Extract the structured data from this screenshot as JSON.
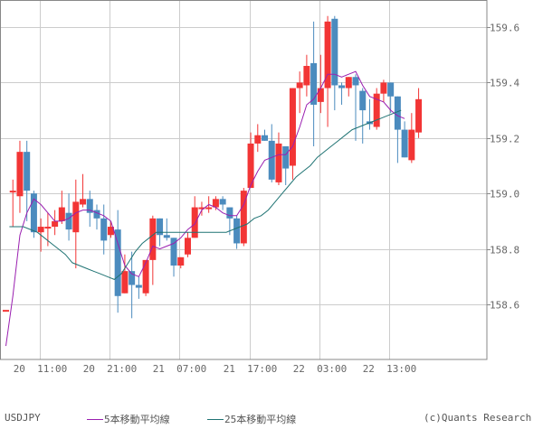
{
  "chart_data": {
    "type": "candlestick",
    "symbol": "USDJPY",
    "ylim": [
      158.44,
      159.72
    ],
    "y_ticks": [
      159.6,
      159.4,
      159.2,
      159.0,
      158.8,
      158.6
    ],
    "y_tick_labels": [
      "159.6",
      "159.4",
      "159.2",
      "159.0",
      "158.8",
      "158.6"
    ],
    "x_ticks": [
      {
        "index": 5,
        "label": "20 11:00"
      },
      {
        "index": 15,
        "label": "20 21:00"
      },
      {
        "index": 25,
        "label": "21 07:00"
      },
      {
        "index": 35,
        "label": "21 17:00"
      },
      {
        "index": 45,
        "label": "22 03:00"
      },
      {
        "index": 55,
        "label": "22 13:00"
      }
    ],
    "grid": true,
    "legend_position": "bottom",
    "candles": [
      {
        "o": 158.58,
        "h": 158.58,
        "l": 158.58,
        "c": 158.58
      },
      {
        "o": 159.01,
        "h": 159.05,
        "l": 158.88,
        "c": 159.01
      },
      {
        "o": 158.99,
        "h": 159.19,
        "l": 158.93,
        "c": 159.15
      },
      {
        "o": 159.15,
        "h": 159.19,
        "l": 158.9,
        "c": 159.01
      },
      {
        "o": 159.0,
        "h": 159.01,
        "l": 158.84,
        "c": 158.86
      },
      {
        "o": 158.86,
        "h": 158.91,
        "l": 158.79,
        "c": 158.88
      },
      {
        "o": 158.88,
        "h": 158.93,
        "l": 158.81,
        "c": 158.88
      },
      {
        "o": 158.88,
        "h": 158.94,
        "l": 158.85,
        "c": 158.9
      },
      {
        "o": 158.9,
        "h": 159.01,
        "l": 158.89,
        "c": 158.95
      },
      {
        "o": 158.93,
        "h": 159.0,
        "l": 158.83,
        "c": 158.87
      },
      {
        "o": 158.86,
        "h": 159.05,
        "l": 158.73,
        "c": 158.97
      },
      {
        "o": 158.96,
        "h": 159.07,
        "l": 158.95,
        "c": 158.98
      },
      {
        "o": 158.98,
        "h": 159.01,
        "l": 158.88,
        "c": 158.93
      },
      {
        "o": 158.94,
        "h": 158.96,
        "l": 158.87,
        "c": 158.91
      },
      {
        "o": 158.91,
        "h": 158.96,
        "l": 158.78,
        "c": 158.83
      },
      {
        "o": 158.85,
        "h": 158.9,
        "l": 158.84,
        "c": 158.88
      },
      {
        "o": 158.87,
        "h": 158.94,
        "l": 158.57,
        "c": 158.63
      },
      {
        "o": 158.64,
        "h": 158.78,
        "l": 158.64,
        "c": 158.72
      },
      {
        "o": 158.72,
        "h": 158.79,
        "l": 158.55,
        "c": 158.67
      },
      {
        "o": 158.67,
        "h": 158.7,
        "l": 158.62,
        "c": 158.66
      },
      {
        "o": 158.64,
        "h": 158.76,
        "l": 158.63,
        "c": 158.76
      },
      {
        "o": 158.76,
        "h": 158.92,
        "l": 158.67,
        "c": 158.91
      },
      {
        "o": 158.91,
        "h": 158.91,
        "l": 158.81,
        "c": 158.85
      },
      {
        "o": 158.85,
        "h": 158.91,
        "l": 158.83,
        "c": 158.84
      },
      {
        "o": 158.84,
        "h": 158.84,
        "l": 158.7,
        "c": 158.74
      },
      {
        "o": 158.74,
        "h": 158.77,
        "l": 158.73,
        "c": 158.77
      },
      {
        "o": 158.78,
        "h": 158.86,
        "l": 158.77,
        "c": 158.84
      },
      {
        "o": 158.84,
        "h": 158.99,
        "l": 158.84,
        "c": 158.95
      },
      {
        "o": 158.95,
        "h": 158.97,
        "l": 158.92,
        "c": 158.95
      },
      {
        "o": 158.95,
        "h": 158.99,
        "l": 158.93,
        "c": 158.95
      },
      {
        "o": 158.95,
        "h": 158.99,
        "l": 158.94,
        "c": 158.98
      },
      {
        "o": 158.98,
        "h": 158.99,
        "l": 158.94,
        "c": 158.96
      },
      {
        "o": 158.95,
        "h": 158.95,
        "l": 158.85,
        "c": 158.91
      },
      {
        "o": 158.91,
        "h": 158.92,
        "l": 158.8,
        "c": 158.82
      },
      {
        "o": 158.82,
        "h": 159.02,
        "l": 158.81,
        "c": 159.01
      },
      {
        "o": 159.02,
        "h": 159.22,
        "l": 159.02,
        "c": 159.18
      },
      {
        "o": 159.18,
        "h": 159.25,
        "l": 159.15,
        "c": 159.21
      },
      {
        "o": 159.21,
        "h": 159.23,
        "l": 159.19,
        "c": 159.19
      },
      {
        "o": 159.19,
        "h": 159.25,
        "l": 159.04,
        "c": 159.05
      },
      {
        "o": 159.04,
        "h": 159.22,
        "l": 159.03,
        "c": 159.18
      },
      {
        "o": 159.17,
        "h": 159.17,
        "l": 159.03,
        "c": 159.09
      },
      {
        "o": 159.1,
        "h": 159.38,
        "l": 159.05,
        "c": 159.38
      },
      {
        "o": 159.38,
        "h": 159.44,
        "l": 159.29,
        "c": 159.4
      },
      {
        "o": 159.39,
        "h": 159.5,
        "l": 159.35,
        "c": 159.46
      },
      {
        "o": 159.47,
        "h": 159.62,
        "l": 159.17,
        "c": 159.32
      },
      {
        "o": 159.33,
        "h": 159.5,
        "l": 159.29,
        "c": 159.38
      },
      {
        "o": 159.38,
        "h": 159.64,
        "l": 159.24,
        "c": 159.62
      },
      {
        "o": 159.63,
        "h": 159.64,
        "l": 159.3,
        "c": 159.39
      },
      {
        "o": 159.39,
        "h": 159.4,
        "l": 159.32,
        "c": 159.38
      },
      {
        "o": 159.38,
        "h": 159.42,
        "l": 159.35,
        "c": 159.42
      },
      {
        "o": 159.42,
        "h": 159.43,
        "l": 159.19,
        "c": 159.39
      },
      {
        "o": 159.37,
        "h": 159.38,
        "l": 159.18,
        "c": 159.3
      },
      {
        "o": 159.26,
        "h": 159.34,
        "l": 159.23,
        "c": 159.25
      },
      {
        "o": 159.24,
        "h": 159.38,
        "l": 159.23,
        "c": 159.36
      },
      {
        "o": 159.36,
        "h": 159.41,
        "l": 159.33,
        "c": 159.4
      },
      {
        "o": 159.4,
        "h": 159.4,
        "l": 159.29,
        "c": 159.35
      },
      {
        "o": 159.35,
        "h": 159.35,
        "l": 159.11,
        "c": 159.23
      },
      {
        "o": 159.23,
        "h": 159.26,
        "l": 159.13,
        "c": 159.13
      },
      {
        "o": 159.12,
        "h": 159.29,
        "l": 159.11,
        "c": 159.23
      },
      {
        "o": 159.22,
        "h": 159.38,
        "l": 159.2,
        "c": 159.34
      }
    ],
    "series": [
      {
        "name": "5本移動平均線",
        "color": "#9a1fb0",
        "values": [
          158.45,
          158.63,
          158.85,
          158.93,
          158.98,
          158.96,
          158.93,
          158.9,
          158.9,
          158.91,
          158.93,
          158.94,
          158.94,
          158.93,
          158.92,
          158.9,
          158.82,
          158.74,
          158.71,
          158.7,
          158.75,
          158.81,
          158.8,
          158.81,
          158.82,
          158.84,
          158.87,
          158.89,
          158.94,
          158.96,
          158.95,
          158.93,
          158.92,
          158.92,
          158.96,
          159.03,
          159.08,
          159.12,
          159.13,
          159.14,
          159.14,
          159.17,
          159.24,
          159.32,
          159.34,
          159.38,
          159.43,
          159.43,
          159.42,
          159.43,
          159.44,
          159.39,
          159.35,
          159.34,
          159.33,
          159.3,
          159.28,
          159.27
        ]
      },
      {
        "name": "25本移動平均線",
        "color": "#1f7373",
        "values": [
          158.88,
          158.88,
          158.88,
          158.87,
          158.86,
          158.84,
          158.82,
          158.8,
          158.78,
          158.75,
          158.74,
          158.73,
          158.72,
          158.71,
          158.7,
          158.69,
          158.71,
          158.75,
          158.79,
          158.82,
          158.84,
          158.86,
          158.86,
          158.86,
          158.86,
          158.86,
          158.86,
          158.86,
          158.86,
          158.86,
          158.86,
          158.86,
          158.87,
          158.88,
          158.89,
          158.91,
          158.92,
          158.94,
          158.97,
          159.0,
          159.03,
          159.06,
          159.08,
          159.1,
          159.13,
          159.15,
          159.17,
          159.19,
          159.21,
          159.23,
          159.24,
          159.25,
          159.26,
          159.27,
          159.28,
          159.29,
          159.3
        ]
      }
    ],
    "colors": {
      "up": "#f23535",
      "down": "#4b8bbe",
      "grid": "#cccccc",
      "axis": "#888888"
    }
  },
  "legend": {
    "symbol": "USDJPY",
    "ma5_label": "5本移動平均線",
    "ma25_label": "25本移動平均線",
    "copyright": "(c)Quants Research"
  }
}
